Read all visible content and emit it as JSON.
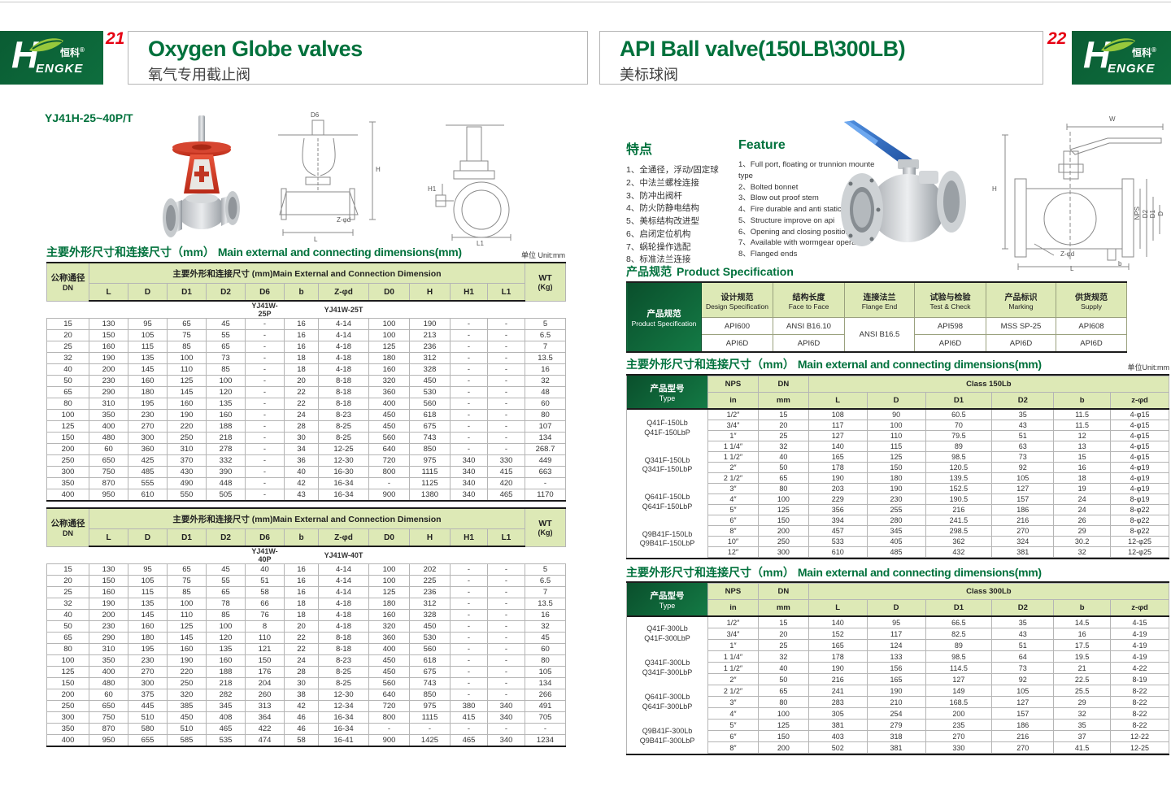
{
  "brand": {
    "cn": "恒科",
    "reg": "®",
    "en_initial": "H",
    "en_rest": "ENGKE"
  },
  "left": {
    "page_no": "21",
    "title_en": "Oxygen Globe valves",
    "title_cn": "氧气专用截止阀",
    "model": "YJ41H-25~40P/T",
    "dim_title_cn": "主要外形尺寸和连接尺寸（mm）",
    "dim_title_en": "Main external and connecting dimensions(mm)",
    "unit": "单位 Unit:mm",
    "dn_cn": "公称通径",
    "dn_en": "DN",
    "group": "主要外形和连接尺寸 (mm)Main External and Connection Dimension",
    "wt1": "WT",
    "wt2": "(Kg)",
    "cols": [
      "L",
      "D",
      "D1",
      "D2",
      "D6",
      "b",
      "Z-φd",
      "D0",
      "H",
      "H1",
      "L1"
    ],
    "drawing_labels": [
      "D6",
      "H",
      "Z-φd",
      "L",
      "H1",
      "L1"
    ],
    "t1": {
      "model_p": "YJ41W-25P",
      "model_t": "YJ41W-25T",
      "rows": [
        [
          "15",
          "130",
          "95",
          "65",
          "45",
          "-",
          "16",
          "4-14",
          "100",
          "190",
          "-",
          "-",
          "5"
        ],
        [
          "20",
          "150",
          "105",
          "75",
          "55",
          "-",
          "16",
          "4-14",
          "100",
          "213",
          "-",
          "-",
          "6.5"
        ],
        [
          "25",
          "160",
          "115",
          "85",
          "65",
          "-",
          "16",
          "4-18",
          "125",
          "236",
          "-",
          "-",
          "7"
        ],
        [
          "32",
          "190",
          "135",
          "100",
          "73",
          "-",
          "18",
          "4-18",
          "180",
          "312",
          "-",
          "-",
          "13.5"
        ],
        [
          "40",
          "200",
          "145",
          "110",
          "85",
          "-",
          "18",
          "4-18",
          "160",
          "328",
          "-",
          "-",
          "16"
        ],
        [
          "50",
          "230",
          "160",
          "125",
          "100",
          "-",
          "20",
          "8-18",
          "320",
          "450",
          "-",
          "-",
          "32"
        ],
        [
          "65",
          "290",
          "180",
          "145",
          "120",
          "-",
          "22",
          "8-18",
          "360",
          "530",
          "-",
          "-",
          "48"
        ],
        [
          "80",
          "310",
          "195",
          "160",
          "135",
          "-",
          "22",
          "8-18",
          "400",
          "560",
          "-",
          "-",
          "60"
        ],
        [
          "100",
          "350",
          "230",
          "190",
          "160",
          "-",
          "24",
          "8-23",
          "450",
          "618",
          "-",
          "-",
          "80"
        ],
        [
          "125",
          "400",
          "270",
          "220",
          "188",
          "-",
          "28",
          "8-25",
          "450",
          "675",
          "-",
          "-",
          "107"
        ],
        [
          "150",
          "480",
          "300",
          "250",
          "218",
          "-",
          "30",
          "8-25",
          "560",
          "743",
          "-",
          "-",
          "134"
        ],
        [
          "200",
          "60",
          "360",
          "310",
          "278",
          "-",
          "34",
          "12-25",
          "640",
          "850",
          "-",
          "-",
          "268.7"
        ],
        [
          "250",
          "650",
          "425",
          "370",
          "332",
          "-",
          "36",
          "12-30",
          "720",
          "975",
          "340",
          "330",
          "449"
        ],
        [
          "300",
          "750",
          "485",
          "430",
          "390",
          "-",
          "40",
          "16-30",
          "800",
          "1115",
          "340",
          "415",
          "663"
        ],
        [
          "350",
          "870",
          "555",
          "490",
          "448",
          "-",
          "42",
          "16-34",
          "-",
          "1125",
          "340",
          "420",
          "-"
        ],
        [
          "400",
          "950",
          "610",
          "550",
          "505",
          "-",
          "43",
          "16-34",
          "900",
          "1380",
          "340",
          "465",
          "1170"
        ]
      ]
    },
    "t2": {
      "model_p": "YJ41W-40P",
      "model_t": "YJ41W-40T",
      "rows": [
        [
          "15",
          "130",
          "95",
          "65",
          "45",
          "40",
          "16",
          "4-14",
          "100",
          "202",
          "-",
          "-",
          "5"
        ],
        [
          "20",
          "150",
          "105",
          "75",
          "55",
          "51",
          "16",
          "4-14",
          "100",
          "225",
          "-",
          "-",
          "6.5"
        ],
        [
          "25",
          "160",
          "115",
          "85",
          "65",
          "58",
          "16",
          "4-14",
          "125",
          "236",
          "-",
          "-",
          "7"
        ],
        [
          "32",
          "190",
          "135",
          "100",
          "78",
          "66",
          "18",
          "4-18",
          "180",
          "312",
          "-",
          "-",
          "13.5"
        ],
        [
          "40",
          "200",
          "145",
          "110",
          "85",
          "76",
          "18",
          "4-18",
          "160",
          "328",
          "-",
          "-",
          "16"
        ],
        [
          "50",
          "230",
          "160",
          "125",
          "100",
          "8",
          "20",
          "4-18",
          "320",
          "450",
          "-",
          "-",
          "32"
        ],
        [
          "65",
          "290",
          "180",
          "145",
          "120",
          "110",
          "22",
          "8-18",
          "360",
          "530",
          "-",
          "-",
          "45"
        ],
        [
          "80",
          "310",
          "195",
          "160",
          "135",
          "121",
          "22",
          "8-18",
          "400",
          "560",
          "-",
          "-",
          "60"
        ],
        [
          "100",
          "350",
          "230",
          "190",
          "160",
          "150",
          "24",
          "8-23",
          "450",
          "618",
          "-",
          "-",
          "80"
        ],
        [
          "125",
          "400",
          "270",
          "220",
          "188",
          "176",
          "28",
          "8-25",
          "450",
          "675",
          "-",
          "-",
          "105"
        ],
        [
          "150",
          "480",
          "300",
          "250",
          "218",
          "204",
          "30",
          "8-25",
          "560",
          "743",
          "-",
          "-",
          "134"
        ],
        [
          "200",
          "60",
          "375",
          "320",
          "282",
          "260",
          "38",
          "12-30",
          "640",
          "850",
          "-",
          "-",
          "266"
        ],
        [
          "250",
          "650",
          "445",
          "385",
          "345",
          "313",
          "42",
          "12-34",
          "720",
          "975",
          "380",
          "340",
          "491"
        ],
        [
          "300",
          "750",
          "510",
          "450",
          "408",
          "364",
          "46",
          "16-34",
          "800",
          "1115",
          "415",
          "340",
          "705"
        ],
        [
          "350",
          "870",
          "580",
          "510",
          "465",
          "422",
          "46",
          "16-34",
          "-",
          "-",
          "-",
          "-",
          "-"
        ],
        [
          "400",
          "950",
          "655",
          "585",
          "535",
          "474",
          "58",
          "16-41",
          "900",
          "1425",
          "465",
          "340",
          "1234"
        ]
      ]
    }
  },
  "right": {
    "page_no": "22",
    "title_en": "API Ball valve(150LB\\300LB)",
    "title_cn": "美标球阀",
    "features_cn": {
      "heading": "特点",
      "items": [
        "1、全通径，浮动/固定球",
        "2、中法兰螺栓连接",
        "3、防冲出阀杆",
        "4、防火防静电结构",
        "5、美标结构改进型",
        "6、启闭定位机构",
        "7、蜗轮操作选配",
        "8、标准法兰连接"
      ]
    },
    "features_en": {
      "heading": "Feature",
      "items": [
        "1、Full port, floating or trunnion mounte type",
        "2、Bolted bonnet",
        "3、Blow out proof stem",
        "4、Fire durable and anti static safety",
        "5、Structure improve on api",
        "6、Opening and closing position",
        "7、Available with wormgear operator",
        "8、Flanged ends"
      ]
    },
    "drawing_labels": [
      "W",
      "H",
      "NPS",
      "D2",
      "D1",
      "D",
      "Z-φd",
      "b",
      "L"
    ],
    "spec": {
      "title_cn": "产品规范",
      "title_en": "Product Specification",
      "row_label_cn": "产品规范",
      "row_label_en": "Product Specification",
      "cols": [
        {
          "cn": "设计规范",
          "en": "Design Specification"
        },
        {
          "cn": "结构长度",
          "en": "Face to Face"
        },
        {
          "cn": "连接法兰",
          "en": "Flange End"
        },
        {
          "cn": "试验与检验",
          "en": "Test & Check"
        },
        {
          "cn": "产品标识",
          "en": "Marking"
        },
        {
          "cn": "供货规范",
          "en": "Supply"
        }
      ],
      "row1": [
        "API600",
        "ANSI B16.10",
        "ANSI B16.5",
        "API598",
        "MSS SP-25",
        "API608"
      ],
      "row2": [
        "API6D",
        "API6D",
        "API6D",
        "API6D",
        "API6D"
      ]
    },
    "dim_title_cn": "主要外形尺寸和连接尺寸（mm）",
    "dim_title_en": "Main external and connecting dimensions(mm)",
    "unit": "单位Unit:mm",
    "type_cn": "产品型号",
    "type_en": "Type",
    "nps": "NPS",
    "dn": "DN",
    "nps_unit": "in",
    "dn_unit": "mm",
    "cols": [
      "L",
      "D",
      "D1",
      "D2",
      "b",
      "z-φd"
    ],
    "t150": {
      "class_label": "Class 150Lb",
      "type_groups": [
        [
          "Q41F-150Lb",
          "Q41F-150LbP"
        ],
        [
          "Q341F-150Lb",
          "Q341F-150LbP"
        ],
        [
          "Q641F-150Lb",
          "Q641F-150LbP"
        ],
        [
          "Q9B41F-150Lb",
          "Q9B41F-150LbP"
        ]
      ],
      "rows": [
        [
          "1/2″",
          "15",
          "108",
          "90",
          "60.5",
          "35",
          "11.5",
          "4-φ15"
        ],
        [
          "3/4″",
          "20",
          "117",
          "100",
          "70",
          "43",
          "11.5",
          "4-φ15"
        ],
        [
          "1″",
          "25",
          "127",
          "110",
          "79.5",
          "51",
          "12",
          "4-φ15"
        ],
        [
          "1 1/4″",
          "32",
          "140",
          "115",
          "89",
          "63",
          "13",
          "4-φ15"
        ],
        [
          "1 1/2″",
          "40",
          "165",
          "125",
          "98.5",
          "73",
          "15",
          "4-φ15"
        ],
        [
          "2″",
          "50",
          "178",
          "150",
          "120.5",
          "92",
          "16",
          "4-φ19"
        ],
        [
          "2 1/2″",
          "65",
          "190",
          "180",
          "139.5",
          "105",
          "18",
          "4-φ19"
        ],
        [
          "3″",
          "80",
          "203",
          "190",
          "152.5",
          "127",
          "19",
          "4-φ19"
        ],
        [
          "4″",
          "100",
          "229",
          "230",
          "190.5",
          "157",
          "24",
          "8-φ19"
        ],
        [
          "5″",
          "125",
          "356",
          "255",
          "216",
          "186",
          "24",
          "8-φ22"
        ],
        [
          "6″",
          "150",
          "394",
          "280",
          "241.5",
          "216",
          "26",
          "8-φ22"
        ],
        [
          "8″",
          "200",
          "457",
          "345",
          "298.5",
          "270",
          "29",
          "8-φ22"
        ],
        [
          "10″",
          "250",
          "533",
          "405",
          "362",
          "324",
          "30.2",
          "12-φ25"
        ],
        [
          "12″",
          "300",
          "610",
          "485",
          "432",
          "381",
          "32",
          "12-φ25"
        ]
      ]
    },
    "t300": {
      "class_label": "Class 300Lb",
      "type_groups": [
        [
          "Q41F-300Lb",
          "Q41F-300LbP"
        ],
        [
          "Q341F-300Lb",
          "Q341F-300LbP"
        ],
        [
          "Q641F-300Lb",
          "Q641F-300LbP"
        ],
        [
          "Q9B41F-300Lb",
          "Q9B41F-300LbP"
        ]
      ],
      "rows": [
        [
          "1/2″",
          "15",
          "140",
          "95",
          "66.5",
          "35",
          "14.5",
          "4-15"
        ],
        [
          "3/4″",
          "20",
          "152",
          "117",
          "82.5",
          "43",
          "16",
          "4-19"
        ],
        [
          "1″",
          "25",
          "165",
          "124",
          "89",
          "51",
          "17.5",
          "4-19"
        ],
        [
          "1 1/4″",
          "32",
          "178",
          "133",
          "98.5",
          "64",
          "19.5",
          "4-19"
        ],
        [
          "1 1/2″",
          "40",
          "190",
          "156",
          "114.5",
          "73",
          "21",
          "4-22"
        ],
        [
          "2″",
          "50",
          "216",
          "165",
          "127",
          "92",
          "22.5",
          "8-19"
        ],
        [
          "2 1/2″",
          "65",
          "241",
          "190",
          "149",
          "105",
          "25.5",
          "8-22"
        ],
        [
          "3″",
          "80",
          "283",
          "210",
          "168.5",
          "127",
          "29",
          "8-22"
        ],
        [
          "4″",
          "100",
          "305",
          "254",
          "200",
          "157",
          "32",
          "8-22"
        ],
        [
          "5″",
          "125",
          "381",
          "279",
          "235",
          "186",
          "35",
          "8-22"
        ],
        [
          "6″",
          "150",
          "403",
          "318",
          "270",
          "216",
          "37",
          "12-22"
        ],
        [
          "8″",
          "200",
          "502",
          "381",
          "330",
          "270",
          "41.5",
          "12-25"
        ]
      ]
    }
  }
}
